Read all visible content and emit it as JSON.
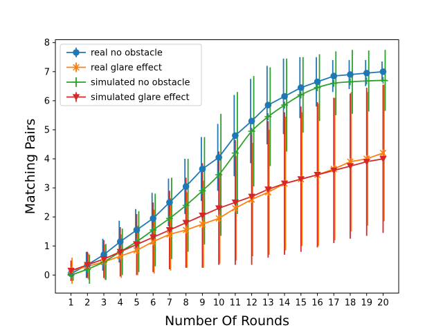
{
  "chart_data": {
    "type": "line",
    "xlabel": "Number Of Rounds",
    "ylabel": "Matching Pairs",
    "x": [
      1,
      2,
      3,
      4,
      5,
      6,
      7,
      8,
      9,
      10,
      11,
      12,
      13,
      14,
      15,
      16,
      17,
      18,
      19,
      20
    ],
    "xlim": [
      0.05,
      20.95
    ],
    "ylim": [
      -0.62,
      8.1
    ],
    "yticks": [
      0,
      1,
      2,
      3,
      4,
      5,
      6,
      7,
      8
    ],
    "grid": false,
    "legend_position": "top-left",
    "series": [
      {
        "name": "real no obstacle",
        "color": "#1f77b4",
        "marker": "circle",
        "values": [
          0.05,
          0.35,
          0.7,
          1.15,
          1.55,
          1.95,
          2.5,
          3.05,
          3.65,
          4.05,
          4.8,
          5.3,
          5.85,
          6.15,
          6.45,
          6.65,
          6.85,
          6.9,
          6.95,
          7.0
        ],
        "errors": [
          0.1,
          0.45,
          0.55,
          0.72,
          0.72,
          0.88,
          0.82,
          0.95,
          1.1,
          1.15,
          1.4,
          1.45,
          1.35,
          1.3,
          1.05,
          0.85,
          0.55,
          0.5,
          0.45,
          0.35
        ]
      },
      {
        "name": "real glare effect",
        "color": "#ff7f0e",
        "marker": "x",
        "values": [
          0.15,
          0.3,
          0.45,
          0.65,
          0.85,
          1.15,
          1.4,
          1.55,
          1.75,
          1.95,
          2.3,
          2.6,
          2.85,
          3.15,
          3.3,
          3.45,
          3.65,
          3.9,
          4.0,
          4.2
        ],
        "errors": [
          0.45,
          0.45,
          0.6,
          0.75,
          0.85,
          1.1,
          1.25,
          1.3,
          1.5,
          1.55,
          1.8,
          1.95,
          2.15,
          2.3,
          2.3,
          2.45,
          2.45,
          2.4,
          2.3,
          2.35
        ]
      },
      {
        "name": "simulated no obstacle",
        "color": "#2ca02c",
        "marker": "plus",
        "curve": "smooth",
        "curve_end": 20.3,
        "curve_end_value": 6.69,
        "values": [
          0.0,
          0.2,
          0.45,
          0.8,
          1.15,
          1.55,
          1.95,
          2.4,
          2.9,
          3.45,
          4.2,
          4.95,
          5.45,
          5.85,
          6.2,
          6.45,
          6.6,
          6.65,
          6.68,
          6.7
        ],
        "errors": [
          0.2,
          0.5,
          0.62,
          0.8,
          1.05,
          1.25,
          1.4,
          1.6,
          1.85,
          2.1,
          2.1,
          1.9,
          1.7,
          1.6,
          1.3,
          1.15,
          1.1,
          1.1,
          1.05,
          1.05
        ]
      },
      {
        "name": "simulated glare effect",
        "color": "#d62728",
        "marker": "triangle-down",
        "values": [
          0.15,
          0.35,
          0.55,
          0.8,
          1.05,
          1.3,
          1.55,
          1.8,
          2.05,
          2.3,
          2.5,
          2.7,
          2.95,
          3.15,
          3.3,
          3.45,
          3.6,
          3.75,
          3.9,
          4.0
        ],
        "errors": [
          0.35,
          0.45,
          0.65,
          0.85,
          1.05,
          1.2,
          1.35,
          1.55,
          1.8,
          1.95,
          2.15,
          2.35,
          2.35,
          2.45,
          2.5,
          2.5,
          2.5,
          2.5,
          2.55,
          2.55
        ]
      }
    ]
  }
}
